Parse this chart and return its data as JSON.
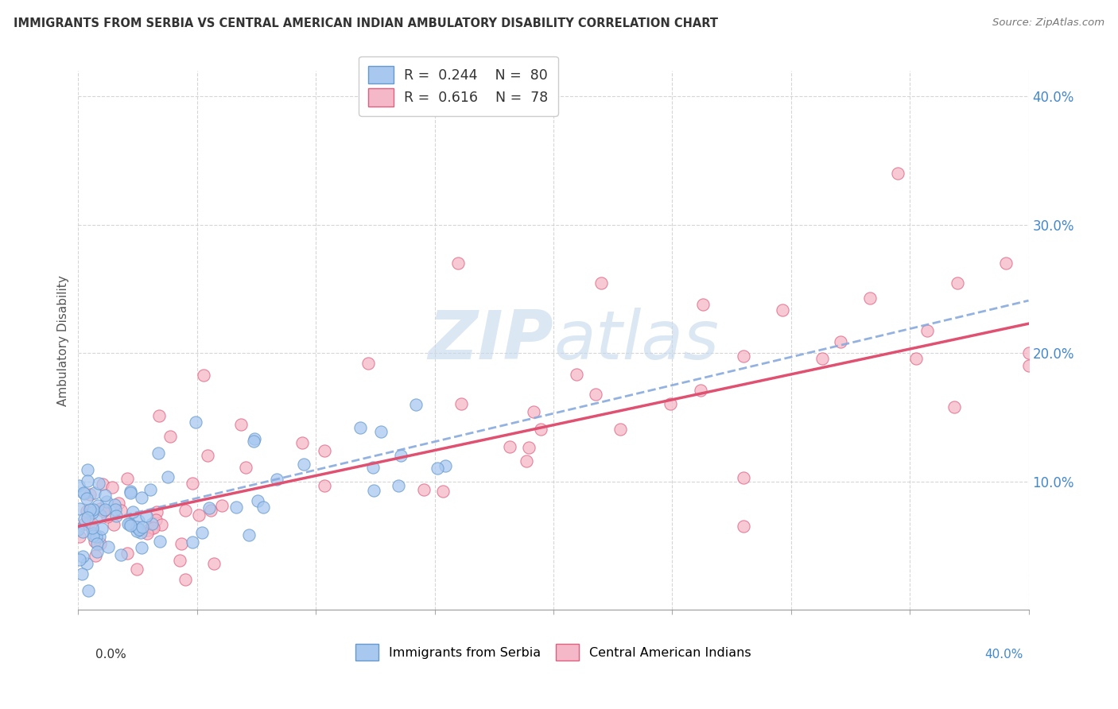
{
  "title": "IMMIGRANTS FROM SERBIA VS CENTRAL AMERICAN INDIAN AMBULATORY DISABILITY CORRELATION CHART",
  "source": "Source: ZipAtlas.com",
  "ylabel": "Ambulatory Disability",
  "legend_label1": "Immigrants from Serbia",
  "legend_label2": "Central American Indians",
  "r1": "0.244",
  "n1": "80",
  "r2": "0.616",
  "n2": "78",
  "color_blue": "#a8c8f0",
  "color_blue_edge": "#6699cc",
  "color_pink": "#f5b8c8",
  "color_pink_edge": "#e06080",
  "color_line_blue": "#88aadd",
  "color_line_pink": "#e05070",
  "watermark_color": "#c5d8ee",
  "xlim": [
    0.0,
    0.4
  ],
  "ylim": [
    0.0,
    0.42
  ],
  "ytick_vals": [
    0.1,
    0.2,
    0.3,
    0.4
  ],
  "ytick_labels": [
    "10.0%",
    "20.0%",
    "30.0%",
    "40.0%"
  ],
  "grid_color": "#cccccc",
  "trend_intercept": 0.065,
  "trend_serbia_slope": 0.44,
  "trend_central_slope": 0.395
}
